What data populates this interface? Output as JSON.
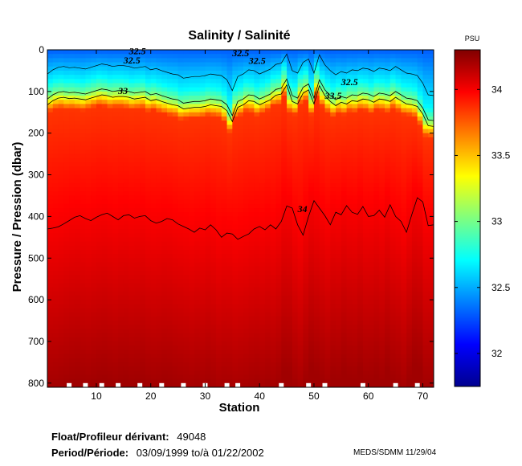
{
  "chart_data": {
    "type": "heatmap",
    "title": "Salinity / Salinité",
    "xlabel": "Station",
    "ylabel": "Pressure / Pression (dbar)",
    "xlim": [
      1,
      72
    ],
    "ylim": [
      0,
      810
    ],
    "xticks": [
      10,
      20,
      30,
      40,
      50,
      60,
      70
    ],
    "yticks": [
      0,
      100,
      200,
      300,
      400,
      500,
      600,
      700,
      800
    ],
    "colorbar": {
      "label": "PSU",
      "range": [
        31.75,
        34.3
      ],
      "ticks": [
        32,
        32.5,
        33,
        33.5,
        34
      ]
    },
    "contours": [
      {
        "level": 32.5,
        "label": "32.5"
      },
      {
        "level": 33,
        "label": "33"
      },
      {
        "level": 33.5,
        "label": "33.5"
      },
      {
        "level": 34,
        "label": "34"
      }
    ],
    "contour_labels": [
      {
        "text": "32.5",
        "station": 16,
        "pressure": 3
      },
      {
        "text": "32.5",
        "station": 15,
        "pressure": 25
      },
      {
        "text": "32.5",
        "station": 35,
        "pressure": 8
      },
      {
        "text": "32.5",
        "station": 38,
        "pressure": 26
      },
      {
        "text": "32.5",
        "station": 55,
        "pressure": 77
      },
      {
        "text": "33",
        "station": 14,
        "pressure": 98
      },
      {
        "text": "33.5",
        "station": 52,
        "pressure": 110
      },
      {
        "text": "34",
        "station": 47,
        "pressure": 382
      }
    ],
    "depth_34_by_station": [
      430,
      428,
      425,
      418,
      410,
      402,
      398,
      405,
      410,
      402,
      396,
      392,
      400,
      408,
      398,
      396,
      404,
      400,
      398,
      410,
      416,
      412,
      405,
      408,
      418,
      424,
      430,
      438,
      428,
      432,
      420,
      432,
      450,
      440,
      442,
      455,
      448,
      442,
      430,
      424,
      432,
      420,
      430,
      412,
      375,
      380,
      420,
      445,
      400,
      362,
      380,
      398,
      420,
      390,
      396,
      374,
      390,
      395,
      376,
      400,
      398,
      385,
      402,
      372,
      400,
      412,
      438,
      395,
      355,
      365,
      422,
      420
    ],
    "depth_33_by_station": [
      118,
      108,
      102,
      100,
      103,
      102,
      104,
      106,
      102,
      98,
      94,
      96,
      100,
      98,
      98,
      100,
      104,
      102,
      100,
      108,
      105,
      110,
      114,
      118,
      120,
      128,
      126,
      124,
      124,
      122,
      118,
      120,
      122,
      132,
      158,
      124,
      118,
      108,
      110,
      118,
      112,
      106,
      95,
      92,
      70,
      110,
      116,
      90,
      82,
      116,
      72,
      96,
      110,
      120,
      112,
      116,
      108,
      110,
      104,
      106,
      112,
      104,
      106,
      110,
      100,
      108,
      116,
      118,
      122,
      140,
      168,
      170
    ],
    "surface_hours": "white gaps at 800 dbar mark missing data"
  },
  "footer": {
    "float_label": "Float/Profileur dérivant:",
    "float_id": "49048",
    "period_label": "Period/Période:",
    "period_value": "03/09/1999  to/à  01/22/2002",
    "credit": "MEDS/SDMM  11/29/04"
  }
}
